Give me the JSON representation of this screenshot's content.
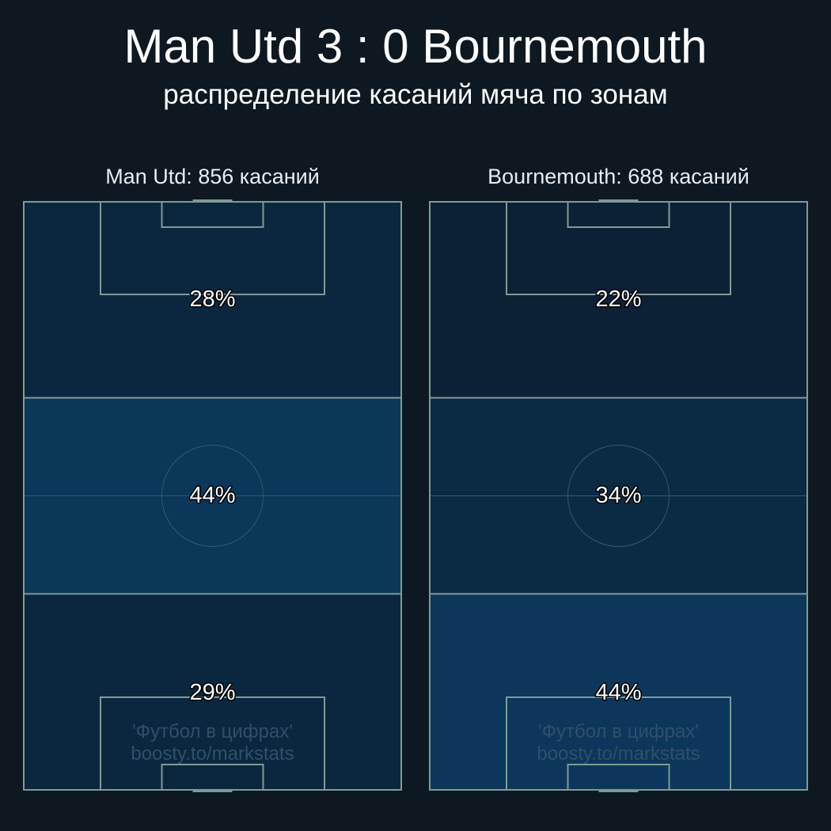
{
  "chart_data": {
    "type": "heatmap",
    "title": "Man Utd 3 : 0 Bournemouth",
    "subtitle": "распределение касаний мяча по зонам",
    "line_color": "#7f9a96",
    "background": "#0e1820",
    "panels": [
      {
        "title": "Man Utd: 856 касаний",
        "zones": [
          {
            "label": "28%",
            "value": 28,
            "color": "#0b2740"
          },
          {
            "label": "44%",
            "value": 44,
            "color": "#0b3759"
          },
          {
            "label": "29%",
            "value": 29,
            "color": "#0b2740"
          }
        ]
      },
      {
        "title": "Bournemouth: 688 касаний",
        "zones": [
          {
            "label": "22%",
            "value": 22,
            "color": "#0c2036"
          },
          {
            "label": "34%",
            "value": 34,
            "color": "#0b2b45"
          },
          {
            "label": "44%",
            "value": 44,
            "color": "#0c375a"
          }
        ]
      }
    ],
    "watermark": [
      "'Футбол в цифрах'",
      "boosty.to/markstats"
    ]
  }
}
